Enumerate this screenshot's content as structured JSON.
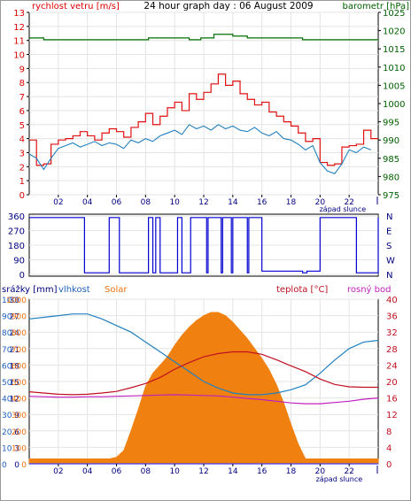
{
  "header": {
    "wind_label": "rychlost vetru [m/s]",
    "title": "24 hour graph day : 06 August 2009",
    "baro_label": "barometr [hPa]"
  },
  "panel3_header": {
    "rain_label": "srážky [mm]",
    "humidity_label": "vlhkost",
    "solar_label": "Solar",
    "temp_label": "teplota [°C]",
    "dew_label": "rosný bod"
  },
  "sunset_label": "západ slunce",
  "colors": {
    "wind": "#e01010",
    "baro": "#007000",
    "wind_dir": "#0000d0",
    "humidity": "#2080c0",
    "solar": "#f08010",
    "temperature": "#c01020",
    "dew": "#c020c0",
    "rain": "#4040ff",
    "axis_text_red": "#e00000",
    "axis_text_green": "#006000",
    "axis_text_blue": "#2060c0",
    "axis_text_orange": "#f07010"
  },
  "chart_data": [
    {
      "type": "line",
      "title": "24 hour graph day : 06 August 2009",
      "x_unit": "hour",
      "xlim": [
        0,
        24
      ],
      "x_ticks": [
        "02",
        "04",
        "06",
        "08",
        "10",
        "12",
        "14",
        "16",
        "18",
        "20",
        "22"
      ],
      "ylabel": "rychlost vetru [m/s]",
      "ylim": [
        0,
        13
      ],
      "y_ticks": [
        0,
        1,
        2,
        3,
        4,
        5,
        6,
        7,
        8,
        9,
        10,
        11,
        12,
        13
      ],
      "y2label": "barometr [hPa]",
      "y2lim": [
        975,
        1025
      ],
      "y2_ticks": [
        975,
        980,
        985,
        990,
        995,
        1000,
        1005,
        1010,
        1015,
        1020,
        1025
      ],
      "sunset_hour": 20.2,
      "series": [
        {
          "name": "rychlost vetru [m/s]",
          "axis": "left",
          "style": "step",
          "x": [
            0,
            0.5,
            1.0,
            1.5,
            2.0,
            2.5,
            3.0,
            3.5,
            4.0,
            4.5,
            5.0,
            5.5,
            6.0,
            6.5,
            7.0,
            7.5,
            8.0,
            8.5,
            9.0,
            9.5,
            10.0,
            10.5,
            11.0,
            11.5,
            12.0,
            12.5,
            13.0,
            13.5,
            14.0,
            14.5,
            15.0,
            15.5,
            16.0,
            16.5,
            17.0,
            17.5,
            18.0,
            18.5,
            19.0,
            19.5,
            20.0,
            20.5,
            21.0,
            21.5,
            22.0,
            22.5,
            23.0,
            23.5
          ],
          "values": [
            3.9,
            2.1,
            2.2,
            3.6,
            3.9,
            4.0,
            4.2,
            4.5,
            4.2,
            3.9,
            4.4,
            4.7,
            4.5,
            4.1,
            4.8,
            5.2,
            5.8,
            5.0,
            5.6,
            6.2,
            6.6,
            6.0,
            7.2,
            6.8,
            7.3,
            7.9,
            8.6,
            7.8,
            8.1,
            7.2,
            6.8,
            6.4,
            6.6,
            5.9,
            5.6,
            5.2,
            4.9,
            4.4,
            3.8,
            4.0,
            2.3,
            2.1,
            2.2,
            3.4,
            3.5,
            3.6,
            4.6,
            4.0
          ]
        },
        {
          "name": "barometr [hPa]",
          "axis": "right",
          "style": "step",
          "x": [
            0,
            1.0,
            5.0,
            7.5,
            8.2,
            10.3,
            11.0,
            11.8,
            12.7,
            14.0,
            15.0,
            16.4,
            18.0,
            18.8,
            19.6,
            24
          ],
          "values": [
            1018,
            1017.5,
            1017.5,
            1017.5,
            1018,
            1018,
            1017.5,
            1018,
            1019,
            1018.5,
            1018,
            1018,
            1018,
            1017.5,
            1017.5,
            1017.5
          ]
        },
        {
          "name": "wind average",
          "axis": "left",
          "style": "line",
          "x": [
            0,
            0.5,
            1.0,
            1.5,
            2.0,
            2.5,
            3.0,
            3.5,
            4.0,
            4.5,
            5.0,
            5.5,
            6.0,
            6.5,
            7.0,
            7.5,
            8.0,
            8.5,
            9.0,
            9.5,
            10.0,
            10.5,
            11.0,
            11.5,
            12.0,
            12.5,
            13.0,
            13.5,
            14.0,
            14.5,
            15.0,
            15.5,
            16.0,
            16.5,
            17.0,
            17.5,
            18.0,
            18.5,
            19.0,
            19.5,
            20.0,
            20.5,
            21.0,
            21.5,
            22.0,
            22.5,
            23.0,
            23.5
          ],
          "values": [
            2.9,
            2.6,
            1.8,
            2.6,
            3.3,
            3.5,
            3.7,
            3.4,
            3.6,
            3.8,
            3.5,
            3.7,
            3.6,
            3.3,
            3.9,
            3.7,
            4.0,
            3.8,
            4.2,
            4.4,
            4.6,
            4.3,
            5.0,
            4.7,
            4.9,
            4.6,
            5.0,
            4.7,
            4.9,
            4.6,
            4.5,
            4.8,
            4.4,
            4.2,
            4.5,
            4.0,
            3.9,
            3.6,
            3.2,
            3.5,
            2.3,
            1.7,
            1.5,
            2.2,
            3.2,
            3.0,
            3.4,
            3.2
          ]
        }
      ]
    },
    {
      "type": "line",
      "title": "",
      "xlim": [
        0,
        24
      ],
      "ylim": [
        0,
        360
      ],
      "y_ticks": [
        0,
        90,
        180,
        270,
        360
      ],
      "y2_ticks": [
        "N",
        "W",
        "S",
        "E",
        "N"
      ],
      "series": [
        {
          "name": "wind direction",
          "style": "step",
          "x": [
            0,
            3.6,
            3.8,
            5.0,
            5.5,
            6.2,
            8.0,
            8.2,
            8.5,
            8.7,
            9.0,
            9.3,
            10.1,
            10.2,
            10.5,
            10.6,
            11.0,
            11.1,
            12.2,
            12.3,
            13.2,
            13.3,
            13.9,
            14.0,
            15.0,
            15.1,
            16.0,
            18.8,
            19.1,
            20.0,
            22.1,
            22.5,
            24
          ],
          "values": [
            350,
            350,
            10,
            10,
            350,
            10,
            10,
            350,
            10,
            350,
            10,
            10,
            10,
            350,
            10,
            10,
            10,
            350,
            10,
            350,
            10,
            350,
            10,
            350,
            10,
            350,
            20,
            10,
            20,
            350,
            350,
            10,
            350
          ]
        }
      ]
    },
    {
      "type": "area",
      "title": "",
      "xlim": [
        0,
        24
      ],
      "x_ticks": [
        "02",
        "04",
        "06",
        "08",
        "10",
        "12",
        "14",
        "16",
        "18",
        "20",
        "22"
      ],
      "left_axis_rain": {
        "label": "srážky [mm]",
        "ylim": [
          0,
          30
        ],
        "ticks": [
          0,
          3,
          6,
          9,
          12,
          15,
          18,
          21,
          24,
          27,
          30
        ]
      },
      "left_axis_humidity": {
        "label": "vlhkost",
        "ylim": [
          0,
          100
        ],
        "ticks": [
          0,
          10,
          20,
          30,
          40,
          50,
          60,
          70,
          80,
          90,
          100
        ]
      },
      "right_axis_solar": {
        "label": "Solar",
        "ylim": [
          0,
          1000
        ],
        "ticks": [
          0,
          100,
          200,
          300,
          400,
          500,
          600,
          700,
          800,
          900,
          1000
        ]
      },
      "right_axis_temp": {
        "label": "teplota [°C]",
        "ylim": [
          0,
          40
        ],
        "ticks": [
          0,
          4,
          8,
          12,
          16,
          20,
          24,
          28,
          32,
          36,
          40
        ]
      },
      "sunset_hour": 20.2,
      "series": [
        {
          "name": "Solar",
          "axis": "solar",
          "style": "area",
          "x": [
            0,
            5.5,
            6.0,
            6.5,
            7.0,
            7.5,
            8.0,
            8.5,
            9.0,
            9.5,
            10.0,
            10.5,
            11.0,
            11.5,
            12.0,
            12.5,
            13.0,
            13.5,
            14.0,
            14.5,
            15.0,
            15.5,
            16.0,
            16.5,
            17.0,
            17.5,
            18.0,
            18.5,
            19.0,
            24
          ],
          "values": [
            30,
            30,
            40,
            80,
            200,
            330,
            470,
            550,
            600,
            650,
            720,
            780,
            830,
            870,
            900,
            920,
            920,
            900,
            860,
            810,
            760,
            700,
            640,
            570,
            480,
            370,
            240,
            120,
            30,
            30
          ]
        },
        {
          "name": "vlhkost",
          "axis": "humidity",
          "style": "line",
          "x": [
            0,
            1.0,
            2.0,
            3.0,
            4.0,
            5.0,
            6.0,
            7.0,
            8.0,
            9.0,
            10.0,
            11.0,
            12.0,
            13.0,
            14.0,
            15.0,
            16.0,
            17.0,
            18.0,
            19.0,
            20.0,
            21.0,
            22.0,
            23.0,
            24.0
          ],
          "values": [
            88,
            89,
            90,
            91,
            91,
            88,
            84,
            80,
            74,
            68,
            62,
            56,
            50,
            46,
            43,
            42,
            42,
            43,
            45,
            48,
            55,
            63,
            70,
            74,
            75
          ]
        },
        {
          "name": "teplota [°C]",
          "axis": "temp",
          "style": "line",
          "x": [
            0,
            1.0,
            2.0,
            3.0,
            4.0,
            5.0,
            6.0,
            7.0,
            8.0,
            9.0,
            10.0,
            11.0,
            12.0,
            13.0,
            14.0,
            15.0,
            16.0,
            17.0,
            18.0,
            19.0,
            20.0,
            21.0,
            22.0,
            23.0,
            24.0
          ],
          "values": [
            17.5,
            17.2,
            16.9,
            16.8,
            16.9,
            17.2,
            17.6,
            18.5,
            19.5,
            21.0,
            23.0,
            24.6,
            26.0,
            26.8,
            27.2,
            27.2,
            26.6,
            25.3,
            23.8,
            22.4,
            20.6,
            19.3,
            18.7,
            18.6,
            18.6
          ]
        },
        {
          "name": "rosný bod",
          "axis": "temp",
          "style": "line",
          "x": [
            0,
            1.0,
            2.0,
            3.0,
            4.0,
            5.0,
            6.0,
            7.0,
            8.0,
            9.0,
            10.0,
            11.0,
            12.0,
            13.0,
            14.0,
            15.0,
            16.0,
            17.0,
            18.0,
            19.0,
            20.0,
            21.0,
            22.0,
            23.0,
            24.0
          ],
          "values": [
            16.4,
            16.3,
            16.2,
            16.2,
            16.3,
            16.3,
            16.4,
            16.5,
            16.6,
            16.7,
            16.8,
            16.7,
            16.6,
            16.5,
            16.2,
            15.9,
            15.6,
            15.2,
            14.8,
            14.6,
            14.6,
            14.9,
            15.2,
            15.7,
            16.0
          ]
        },
        {
          "name": "srážky [mm]",
          "axis": "rain",
          "style": "line",
          "x": [
            0,
            24
          ],
          "values": [
            0,
            0
          ]
        }
      ]
    }
  ]
}
